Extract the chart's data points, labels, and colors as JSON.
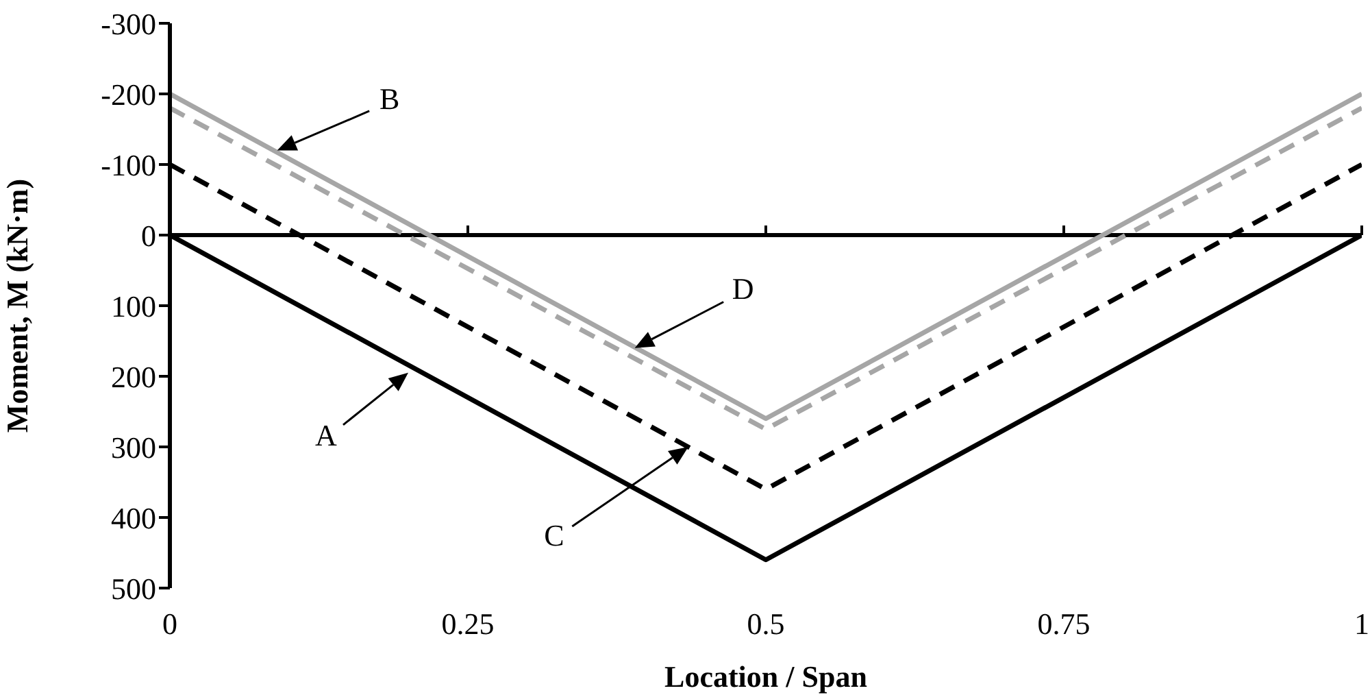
{
  "chart_data": {
    "type": "line",
    "xlabel": "Location / Span",
    "ylabel": "Moment, M (kN·m)",
    "x": [
      0,
      0.5,
      1
    ],
    "series": [
      {
        "color": "#000000",
        "line_style": "solid",
        "values": [
          0,
          460,
          0
        ]
      },
      {
        "color": "#a6a6a6",
        "line_style": "solid",
        "values": [
          -200,
          260,
          -200
        ]
      },
      {
        "color": "#000000",
        "line_style": "dashed",
        "values": [
          -100,
          360,
          -100
        ]
      },
      {
        "color": "#a6a6a6",
        "line_style": "dashed",
        "values": [
          -180,
          275,
          -180
        ]
      }
    ],
    "xlim": [
      0,
      1
    ],
    "xticks": [
      0,
      0.25,
      0.5,
      0.75,
      1
    ],
    "ylim": [
      500,
      -300
    ],
    "yticks": [
      -300,
      -200,
      -100,
      0,
      100,
      200,
      300,
      400,
      500
    ],
    "ref_lines": [
      {
        "axis": "y",
        "value": 0,
        "color": "#000000"
      }
    ],
    "annotations": [
      "A",
      "B",
      "C",
      "D"
    ],
    "marker": "none",
    "grid": false,
    "legend": false
  }
}
